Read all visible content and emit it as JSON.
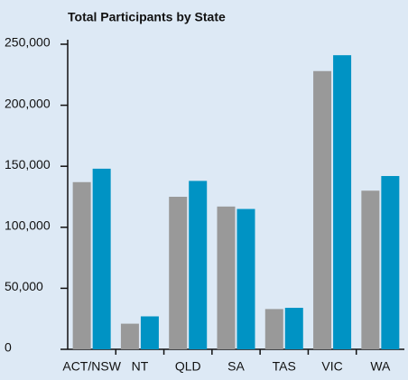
{
  "chart_data": {
    "type": "bar",
    "title": "Total Participants by State",
    "categories": [
      "ACT/NSW",
      "NT",
      "QLD",
      "SA",
      "TAS",
      "VIC",
      "WA"
    ],
    "series": [
      {
        "color": "#999999",
        "values": [
          137000,
          21000,
          125000,
          117000,
          33000,
          228000,
          130000
        ]
      },
      {
        "color": "#0093c4",
        "values": [
          148000,
          27000,
          138000,
          115000,
          34000,
          241000,
          142000
        ]
      }
    ],
    "ylim": [
      0,
      250000
    ],
    "yticks": [
      0,
      {
        "value": 50000,
        "label": "50,000"
      },
      {
        "value": 100000,
        "label": "100,000"
      },
      {
        "value": 150000,
        "label": "150,000"
      },
      {
        "value": 200000,
        "label": "200,000"
      },
      {
        "value": 250000,
        "label": "250,000"
      }
    ],
    "grid": false
  }
}
